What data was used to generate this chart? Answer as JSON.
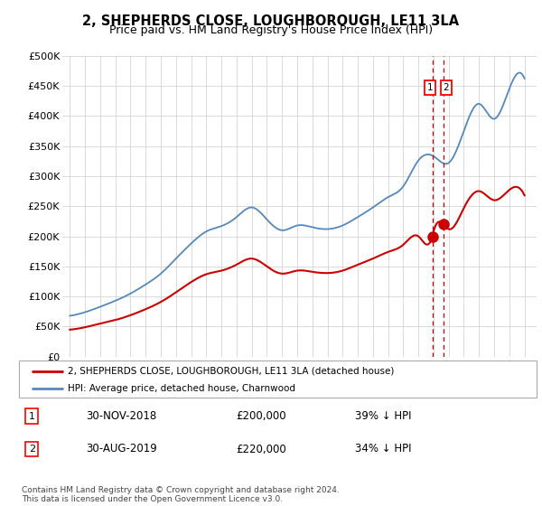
{
  "title": "2, SHEPHERDS CLOSE, LOUGHBOROUGH, LE11 3LA",
  "subtitle": "Price paid vs. HM Land Registry's House Price Index (HPI)",
  "ylim": [
    0,
    500000
  ],
  "yticks": [
    0,
    50000,
    100000,
    150000,
    200000,
    250000,
    300000,
    350000,
    400000,
    450000,
    500000
  ],
  "ytick_labels": [
    "£0",
    "£50K",
    "£100K",
    "£150K",
    "£200K",
    "£250K",
    "£300K",
    "£350K",
    "£400K",
    "£450K",
    "£500K"
  ],
  "legend_red": "2, SHEPHERDS CLOSE, LOUGHBOROUGH, LE11 3LA (detached house)",
  "legend_blue": "HPI: Average price, detached house, Charnwood",
  "transaction1_date": "30-NOV-2018",
  "transaction1_price": "£200,000",
  "transaction1_hpi": "39% ↓ HPI",
  "transaction2_date": "30-AUG-2019",
  "transaction2_price": "£220,000",
  "transaction2_hpi": "34% ↓ HPI",
  "copyright": "Contains HM Land Registry data © Crown copyright and database right 2024.\nThis data is licensed under the Open Government Licence v3.0.",
  "red_color": "#cc0000",
  "blue_color": "#5588bb",
  "marker1_x": 2018.917,
  "marker2_x": 2019.667,
  "marker1_y": 200000,
  "marker2_y": 220000,
  "xlim_left": 1994.5,
  "xlim_right": 2025.8,
  "hpi_years": [
    1995,
    1996,
    1997,
    1998,
    1999,
    2000,
    2001,
    2002,
    2003,
    2004,
    2005,
    2006,
    2007,
    2008,
    2009,
    2010,
    2011,
    2012,
    2013,
    2014,
    2015,
    2016,
    2017,
    2018,
    2019,
    2020,
    2021,
    2022,
    2023,
    2024,
    2025
  ],
  "hpi_values": [
    68000,
    74000,
    83000,
    93000,
    105000,
    120000,
    138000,
    163000,
    188000,
    208000,
    217000,
    232000,
    248000,
    228000,
    210000,
    218000,
    215000,
    212000,
    218000,
    232000,
    248000,
    265000,
    283000,
    326000,
    333000,
    322000,
    375000,
    420000,
    395000,
    445000,
    462000
  ],
  "red_years": [
    1995,
    1996,
    1997,
    1998,
    1999,
    2000,
    2001,
    2002,
    2003,
    2004,
    2005,
    2006,
    2007,
    2008,
    2009,
    2010,
    2011,
    2012,
    2013,
    2014,
    2015,
    2016,
    2017,
    2018,
    2018.917,
    2019,
    2019.667,
    2020,
    2021,
    2022,
    2023,
    2024,
    2025
  ],
  "red_values": [
    45000,
    49000,
    55000,
    61000,
    69000,
    79000,
    91000,
    107000,
    124000,
    137000,
    143000,
    153000,
    163000,
    150000,
    138000,
    143000,
    141000,
    139000,
    143000,
    153000,
    163000,
    174000,
    186000,
    200000,
    200000,
    208000,
    220000,
    212000,
    247000,
    275000,
    260000,
    277000,
    268000
  ]
}
